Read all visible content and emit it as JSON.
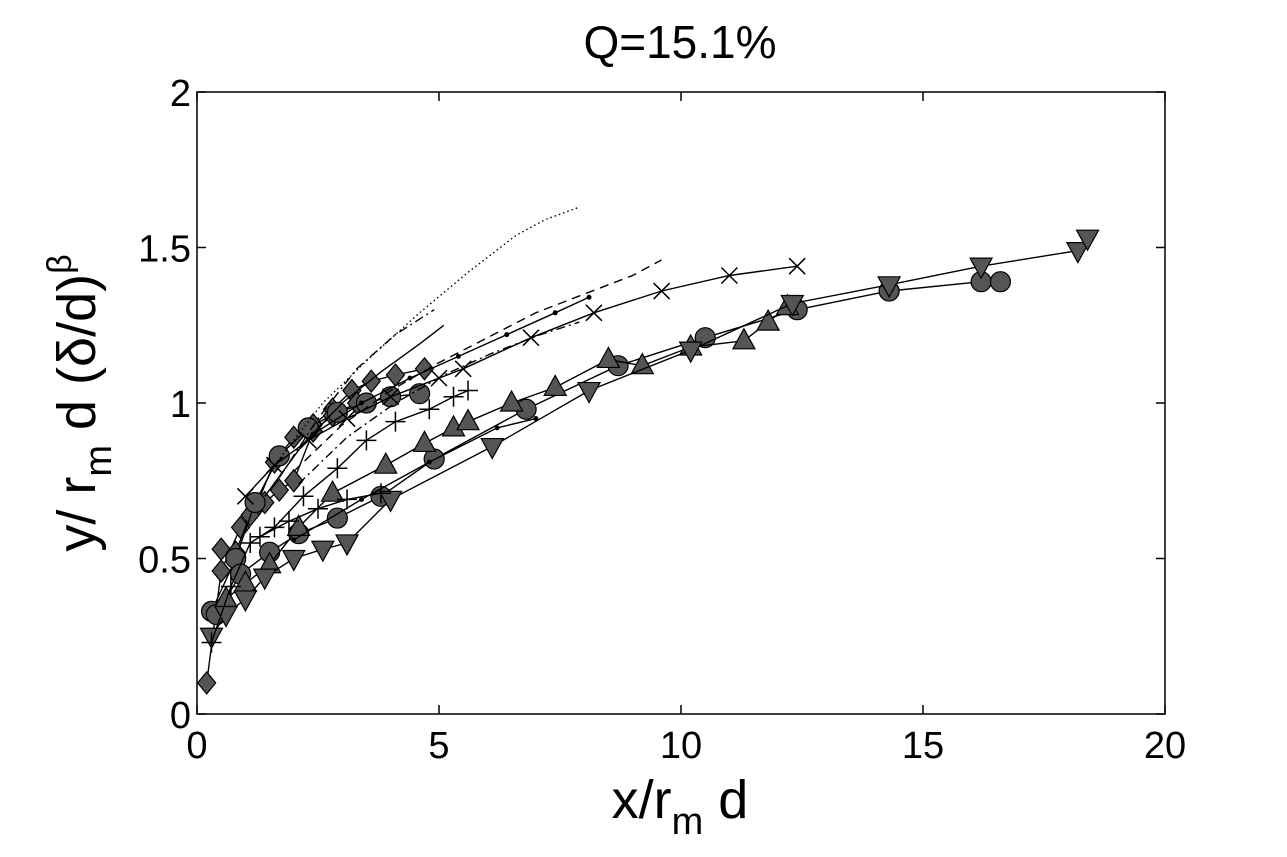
{
  "chart_data": {
    "type": "line",
    "title": "Q=15.1%",
    "xlabel": {
      "main": "x/r",
      "subscript": "m",
      "suffix": " d"
    },
    "ylabel": {
      "main": "y/ r",
      "subscript": "m",
      "middle": " d (δ/d)",
      "superscript": "β"
    },
    "xlim": [
      0,
      20
    ],
    "ylim": [
      0,
      2
    ],
    "xticks": [
      0,
      5,
      10,
      15,
      20
    ],
    "yticks": [
      0,
      0.5,
      1,
      1.5,
      2
    ],
    "xtick_labels": [
      "0",
      "5",
      "10",
      "15",
      "20"
    ],
    "ytick_labels": [
      "0",
      "0.5",
      "1",
      "1.5",
      "2"
    ],
    "grid": false,
    "legend": "none",
    "colors": {
      "marker_fill": "#555555",
      "line": "#000000",
      "axes": "#000000"
    },
    "series": [
      {
        "marker": "diamond",
        "line": "solid",
        "x": [
          0.2,
          0.5,
          0.9,
          1.2,
          1.6,
          2.0,
          2.4,
          2.8,
          3.2,
          3.6,
          4.1,
          4.7
        ],
        "y": [
          0.1,
          0.46,
          0.6,
          0.66,
          0.81,
          0.89,
          0.93,
          0.98,
          1.04,
          1.07,
          1.09,
          1.11
        ]
      },
      {
        "marker": "diamond",
        "line": "solid",
        "x": [
          0.5,
          0.8,
          1.1,
          1.4,
          1.7,
          2.0,
          2.4,
          2.8,
          3.3
        ],
        "y": [
          0.53,
          0.52,
          0.64,
          0.68,
          0.72,
          0.75,
          0.91,
          0.96,
          1.0
        ]
      },
      {
        "marker": "circle",
        "line": "solid",
        "x": [
          0.3,
          0.8,
          1.2,
          1.7,
          2.3,
          2.9,
          3.5,
          4.0,
          4.6
        ],
        "y": [
          0.33,
          0.5,
          0.68,
          0.83,
          0.92,
          0.97,
          1.0,
          1.02,
          1.03
        ]
      },
      {
        "marker": "circle",
        "line": "solid",
        "x": [
          0.4,
          0.9,
          1.5,
          2.1,
          2.9,
          3.8,
          4.9,
          6.8,
          8.7,
          10.5,
          12.4,
          14.3,
          16.2,
          16.6
        ],
        "y": [
          0.32,
          0.45,
          0.52,
          0.58,
          0.63,
          0.7,
          0.82,
          0.98,
          1.12,
          1.21,
          1.3,
          1.36,
          1.39,
          1.39
        ]
      },
      {
        "marker": "triangle-up",
        "line": "solid",
        "x": [
          0.6,
          1.0,
          1.5,
          2.1,
          2.8,
          3.9,
          4.7,
          5.3,
          5.6,
          6.5,
          7.4,
          8.5,
          9.2,
          10.2,
          11.3,
          11.8,
          12.2
        ],
        "y": [
          0.37,
          0.42,
          0.48,
          0.6,
          0.71,
          0.8,
          0.87,
          0.92,
          0.94,
          1.0,
          1.05,
          1.14,
          1.12,
          1.18,
          1.2,
          1.26,
          1.31
        ]
      },
      {
        "marker": "triangle-down",
        "line": "solid",
        "x": [
          0.3,
          0.6,
          1.0,
          1.4,
          2.0,
          2.6,
          3.1,
          4.0,
          6.1,
          8.1,
          10.2,
          12.3,
          14.3,
          16.2,
          18.2,
          18.4
        ],
        "y": [
          0.25,
          0.32,
          0.37,
          0.44,
          0.5,
          0.53,
          0.55,
          0.69,
          0.86,
          1.04,
          1.17,
          1.32,
          1.38,
          1.44,
          1.49,
          1.53
        ]
      },
      {
        "marker": "plus",
        "line": "solid",
        "x": [
          0.3,
          0.7,
          1.1,
          1.6,
          2.2,
          2.9,
          3.5,
          4.1,
          4.8,
          5.3,
          5.6
        ],
        "y": [
          0.23,
          0.41,
          0.55,
          0.6,
          0.7,
          0.79,
          0.88,
          0.94,
          0.98,
          1.02,
          1.04
        ]
      },
      {
        "marker": "plus",
        "line": "solid",
        "x": [
          1.3,
          1.9,
          2.5,
          3.1,
          3.8
        ],
        "y": [
          0.57,
          0.62,
          0.66,
          0.69,
          0.71
        ]
      },
      {
        "marker": "cross",
        "line": "solid",
        "x": [
          1.0,
          1.6,
          2.3,
          3.1,
          4.0,
          5.0,
          5.5,
          6.9,
          8.2,
          9.6,
          11.0,
          12.4
        ],
        "y": [
          0.7,
          0.8,
          0.88,
          0.95,
          1.02,
          1.08,
          1.11,
          1.21,
          1.29,
          1.36,
          1.41,
          1.44
        ]
      },
      {
        "marker": "dot",
        "line": "solid",
        "x": [
          2.4,
          3.4,
          4.4,
          5.4,
          6.4,
          7.4,
          8.1
        ],
        "y": [
          0.9,
          1.0,
          1.08,
          1.15,
          1.22,
          1.29,
          1.34
        ]
      },
      {
        "marker": "dot",
        "line": "solid",
        "x": [
          2.0,
          3.4,
          4.8,
          6.2,
          7.0
        ],
        "y": [
          0.56,
          0.69,
          0.81,
          0.92,
          0.95
        ]
      },
      {
        "marker": "none",
        "line": "dashed",
        "x": [
          2.0,
          3.0,
          4.0,
          5.0,
          6.0,
          7.0,
          8.0,
          9.0,
          9.6
        ],
        "y": [
          0.78,
          0.93,
          1.04,
          1.13,
          1.21,
          1.29,
          1.35,
          1.41,
          1.46
        ]
      },
      {
        "marker": "none",
        "line": "dashdot",
        "x": [
          2.1,
          3.1,
          4.1,
          5.1,
          6.1,
          7.1,
          7.9
        ],
        "y": [
          0.74,
          0.89,
          1.0,
          1.09,
          1.16,
          1.22,
          1.26
        ]
      },
      {
        "marker": "none",
        "line": "solid",
        "x": [
          1.4,
          2.2,
          3.0,
          3.8,
          4.6,
          5.1
        ],
        "y": [
          0.7,
          0.87,
          1.0,
          1.1,
          1.19,
          1.25
        ]
      },
      {
        "marker": "none",
        "line": "dotted",
        "x": [
          1.6,
          2.6,
          3.6,
          4.6,
          5.6,
          6.6,
          7.2,
          7.9
        ],
        "y": [
          0.8,
          1.0,
          1.15,
          1.29,
          1.42,
          1.54,
          1.59,
          1.63
        ]
      },
      {
        "marker": "none",
        "line": "dashdot",
        "x": [
          1.7,
          2.5,
          3.3,
          4.1,
          4.9
        ],
        "y": [
          0.76,
          0.95,
          1.11,
          1.22,
          1.3
        ]
      }
    ]
  }
}
